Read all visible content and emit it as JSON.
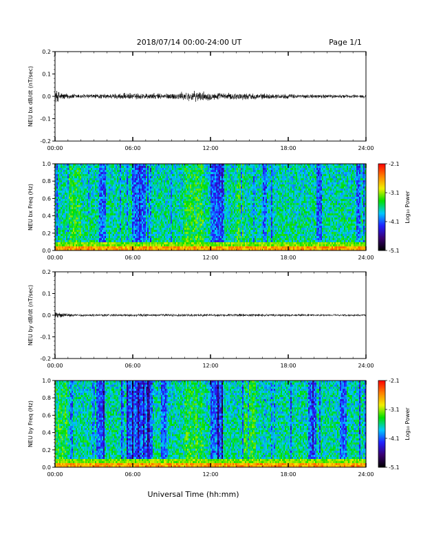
{
  "header": {
    "title": "2018/07/14  00:00-24:00 UT",
    "page": "Page 1/1"
  },
  "footer": {
    "xlabel": "Universal Time (hh:mm)"
  },
  "colormap_colors": [
    "#000000",
    "#3a0070",
    "#2020ff",
    "#00c8ff",
    "#00e000",
    "#f0f000",
    "#ff8000",
    "#ff0000"
  ],
  "chart_data": [
    {
      "type": "line",
      "ylabel": "NEU bx dB/dt (nT/sec)",
      "ylim": [
        -0.2,
        0.2
      ],
      "yticks": [
        "0.2",
        "0.1",
        "0.0",
        "-0.1",
        "-0.2"
      ],
      "xticks": [
        "00:00",
        "06:00",
        "12:00",
        "18:00",
        "24:00"
      ],
      "xlim_hours": [
        0,
        24
      ],
      "envelope": {
        "hours": [
          0,
          0.5,
          1,
          2,
          3,
          4,
          5,
          6,
          7,
          8,
          9,
          10,
          11,
          12,
          13,
          14,
          15,
          16,
          17,
          18,
          19,
          20,
          21,
          22,
          23,
          24
        ],
        "amplitude": [
          0.035,
          0.02,
          0.014,
          0.012,
          0.012,
          0.012,
          0.016,
          0.016,
          0.016,
          0.015,
          0.016,
          0.022,
          0.026,
          0.02,
          0.016,
          0.018,
          0.016,
          0.014,
          0.012,
          0.012,
          0.01,
          0.01,
          0.01,
          0.009,
          0.009,
          0.009
        ]
      }
    },
    {
      "type": "heatmap",
      "ylabel": "NEU bx Freq (Hz)",
      "ylim": [
        0,
        1.0
      ],
      "yticks": [
        "1.0",
        "0.8",
        "0.6",
        "0.4",
        "0.2",
        "0.0"
      ],
      "xticks": [
        "00:00",
        "06:00",
        "12:00",
        "18:00",
        "24:00"
      ],
      "colorbar": {
        "label": "Log₁₀ Power",
        "range": [
          -5.1,
          -2.1
        ],
        "ticks": [
          "-2.1",
          "-3.1",
          "-4.1",
          "-5.1"
        ]
      },
      "low_power_hours": [
        [
          6.0,
          7.0
        ],
        [
          12.0,
          13.0
        ],
        [
          3.4,
          3.9
        ],
        [
          16.0,
          16.4
        ],
        [
          20.2,
          20.6
        ],
        [
          23.3,
          23.6
        ]
      ],
      "high_power_hours": [
        [
          10.0,
          11.5
        ],
        [
          1.0,
          2.0
        ],
        [
          14.0,
          14.6
        ]
      ]
    },
    {
      "type": "line",
      "ylabel": "NEU by dB/dt (nT/sec)",
      "ylim": [
        -0.2,
        0.2
      ],
      "yticks": [
        "0.2",
        "0.1",
        "0.0",
        "-0.1",
        "-0.2"
      ],
      "xticks": [
        "00:00",
        "06:00",
        "12:00",
        "18:00",
        "24:00"
      ],
      "xlim_hours": [
        0,
        24
      ],
      "envelope": {
        "hours": [
          0,
          0.5,
          1,
          2,
          3,
          4,
          5,
          6,
          7,
          8,
          9,
          10,
          11,
          12,
          13,
          14,
          15,
          16,
          17,
          18,
          19,
          20,
          21,
          22,
          23,
          24
        ],
        "amplitude": [
          0.02,
          0.011,
          0.009,
          0.007,
          0.007,
          0.007,
          0.007,
          0.008,
          0.007,
          0.007,
          0.007,
          0.007,
          0.008,
          0.007,
          0.007,
          0.007,
          0.007,
          0.007,
          0.007,
          0.007,
          0.007,
          0.006,
          0.006,
          0.006,
          0.006,
          0.006
        ]
      }
    },
    {
      "type": "heatmap",
      "ylabel": "NEU by Freq (Hz)",
      "ylim": [
        0,
        1.0
      ],
      "yticks": [
        "1.0",
        "0.8",
        "0.6",
        "0.4",
        "0.2",
        "0.0"
      ],
      "xticks": [
        "00:00",
        "06:00",
        "12:00",
        "18:00",
        "24:00"
      ],
      "colorbar": {
        "label": "Log₁₀ Power",
        "range": [
          -5.1,
          -2.1
        ],
        "ticks": [
          "-2.1",
          "-3.1",
          "-4.1",
          "-5.1"
        ]
      },
      "low_power_hours": [
        [
          5.5,
          7.5
        ],
        [
          12.0,
          13.0
        ],
        [
          3.2,
          3.8
        ],
        [
          8.2,
          8.6
        ],
        [
          19.5,
          20.2
        ],
        [
          22.0,
          22.5
        ]
      ],
      "high_power_hours": [
        [
          10.0,
          11.5
        ],
        [
          0.0,
          1.0
        ],
        [
          14.5,
          15.5
        ]
      ]
    }
  ]
}
